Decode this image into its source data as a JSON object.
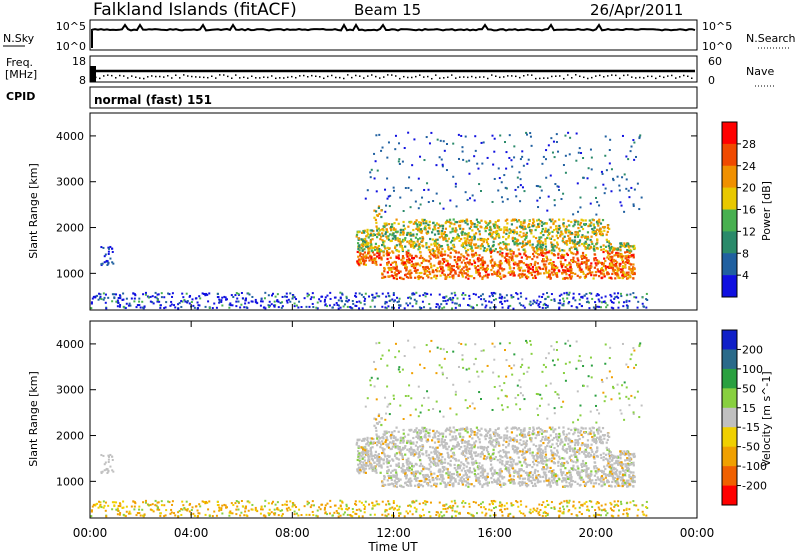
{
  "header": {
    "title": "Falkland Islands (fitACF)",
    "beam": "Beam 15",
    "date": "26/Apr/2011"
  },
  "chart_data": [
    {
      "type": "line",
      "panel": "noise",
      "left_label": "N.Sky",
      "right_label": "N.Search",
      "left_ticks": [
        "10^5",
        "10^0"
      ],
      "right_ticks": [
        "10^5",
        "10^0"
      ]
    },
    {
      "type": "line",
      "panel": "frequency",
      "left_label_top": "Freq.",
      "left_label_bottom": "[MHz]",
      "right_label": "Nave",
      "left_ticks": [
        "18",
        "8"
      ],
      "right_ticks": [
        "60",
        "0"
      ]
    },
    {
      "type": "table",
      "panel": "cpid",
      "label": "CPID",
      "value": "normal (fast) 151"
    },
    {
      "type": "heatmap",
      "panel": "power",
      "ylabel": "Slant Range [km]",
      "ylim": [
        200,
        4500
      ],
      "yticks": [
        "1000",
        "2000",
        "3000",
        "4000"
      ],
      "colorbar_label": "Power [dB]",
      "colorbar_ticks": [
        "4",
        "8",
        "12",
        "16",
        "20",
        "24",
        "28"
      ],
      "colors": [
        "#1010e0",
        "#2060a0",
        "#2a8a6a",
        "#48b050",
        "#e8c800",
        "#f09000",
        "#f04a00",
        "#ff0000"
      ]
    },
    {
      "type": "heatmap",
      "panel": "velocity",
      "ylabel": "Slant Range [km]",
      "ylim": [
        200,
        4500
      ],
      "yticks": [
        "1000",
        "2000",
        "3000",
        "4000"
      ],
      "colorbar_label": "Velocity [m s^-1]",
      "colorbar_ticks": [
        "200",
        "100",
        "50",
        "15",
        "-15",
        "-50",
        "-100",
        "-200"
      ],
      "colors": [
        "#1020c8",
        "#2a6a8a",
        "#2aa040",
        "#88d040",
        "#c0c0c0",
        "#f0d000",
        "#f0a000",
        "#f06000",
        "#ff0000"
      ]
    }
  ],
  "x_axis": {
    "xlabel": "Time UT",
    "ticks": [
      "00:00",
      "04:00",
      "08:00",
      "12:00",
      "16:00",
      "20:00",
      "00:00"
    ]
  }
}
